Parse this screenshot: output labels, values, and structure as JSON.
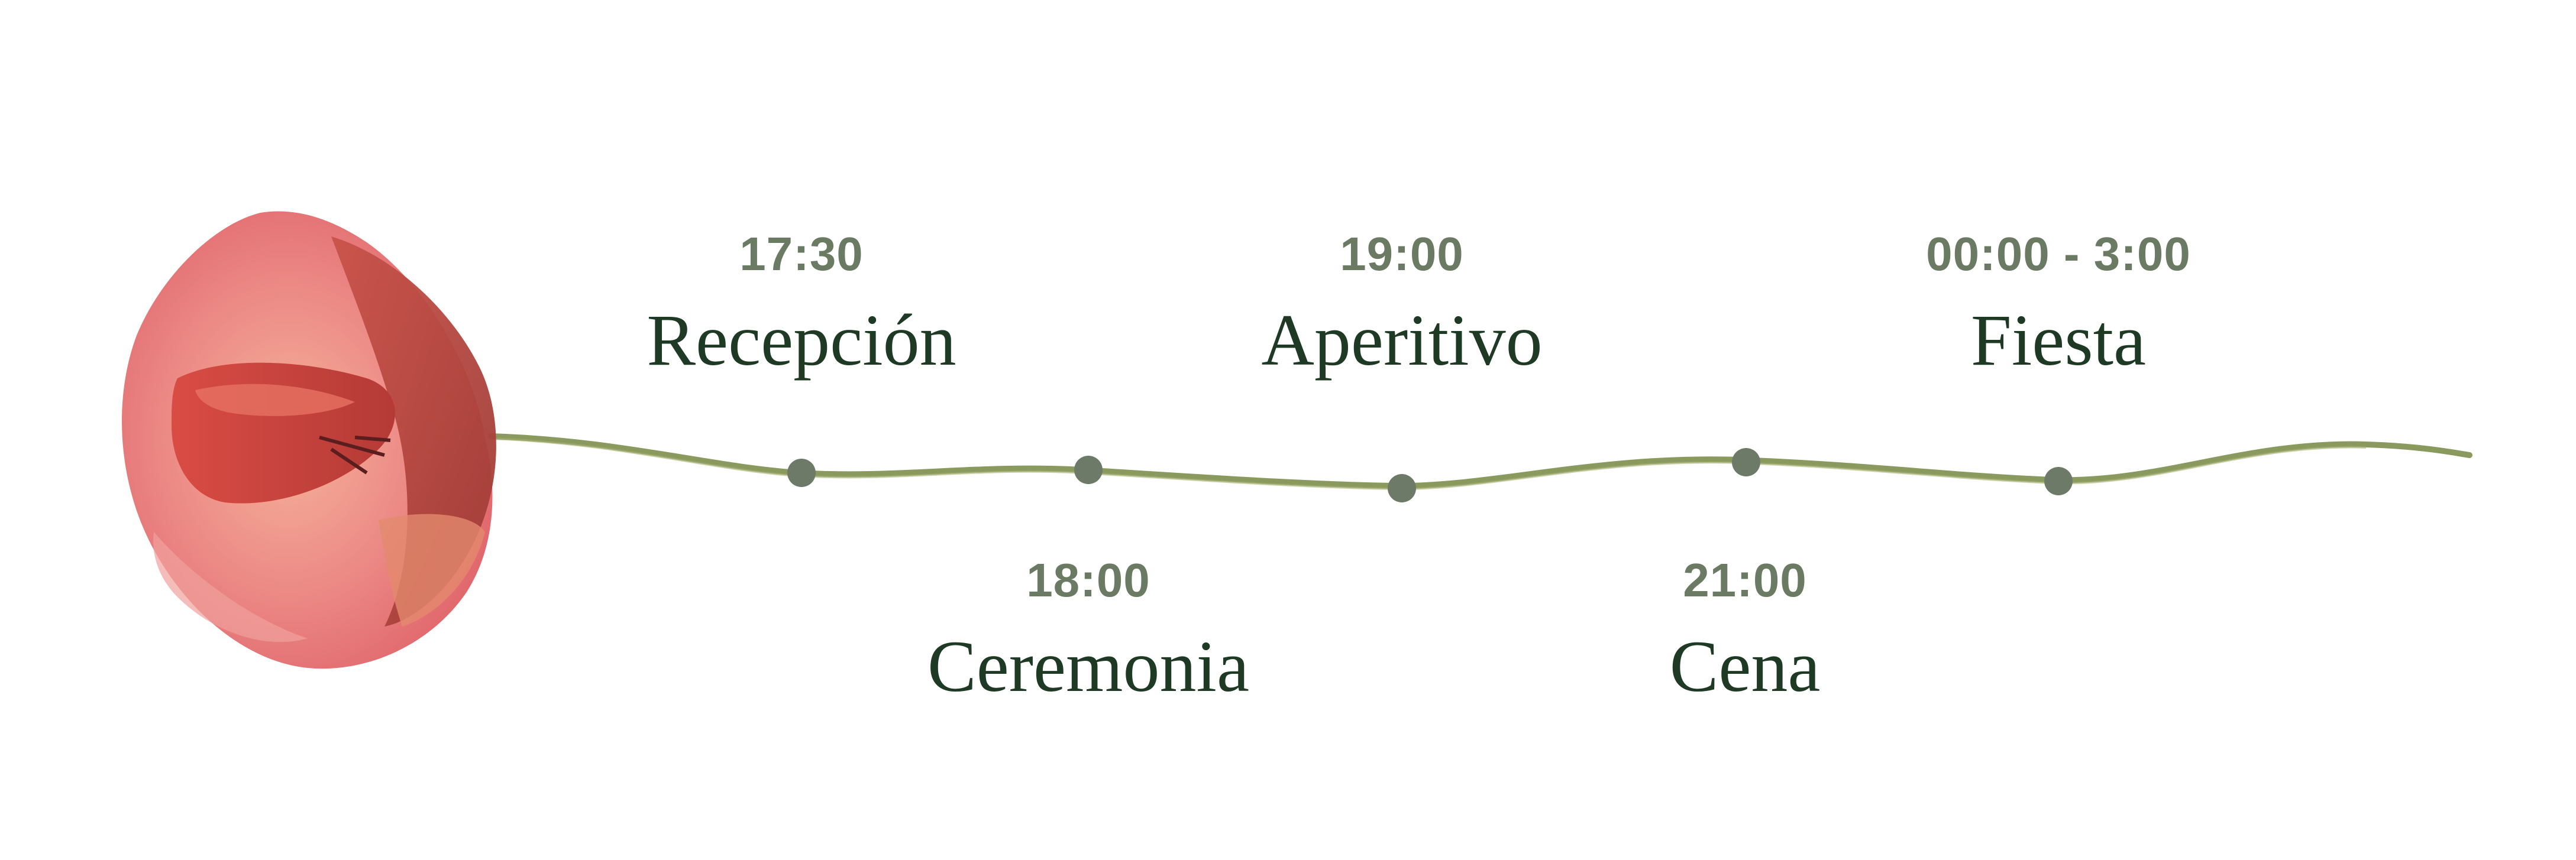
{
  "events": [
    {
      "time": "17:30",
      "name": "Recepción"
    },
    {
      "time": "18:00",
      "name": "Ceremonia"
    },
    {
      "time": "19:00",
      "name": "Aperitivo"
    },
    {
      "time": "21:00",
      "name": "Cena"
    },
    {
      "time": "00:00 - 3:00",
      "name": "Fiesta"
    }
  ],
  "colors": {
    "time_text": "#6b7a63",
    "name_text": "#1f3a24",
    "stem": "#8a9a5e",
    "dot": "#6d7a68",
    "flower_main": "#e8787a",
    "flower_dark": "#b8433e"
  },
  "icons": {
    "flower": "poppy-flower-illustration"
  }
}
